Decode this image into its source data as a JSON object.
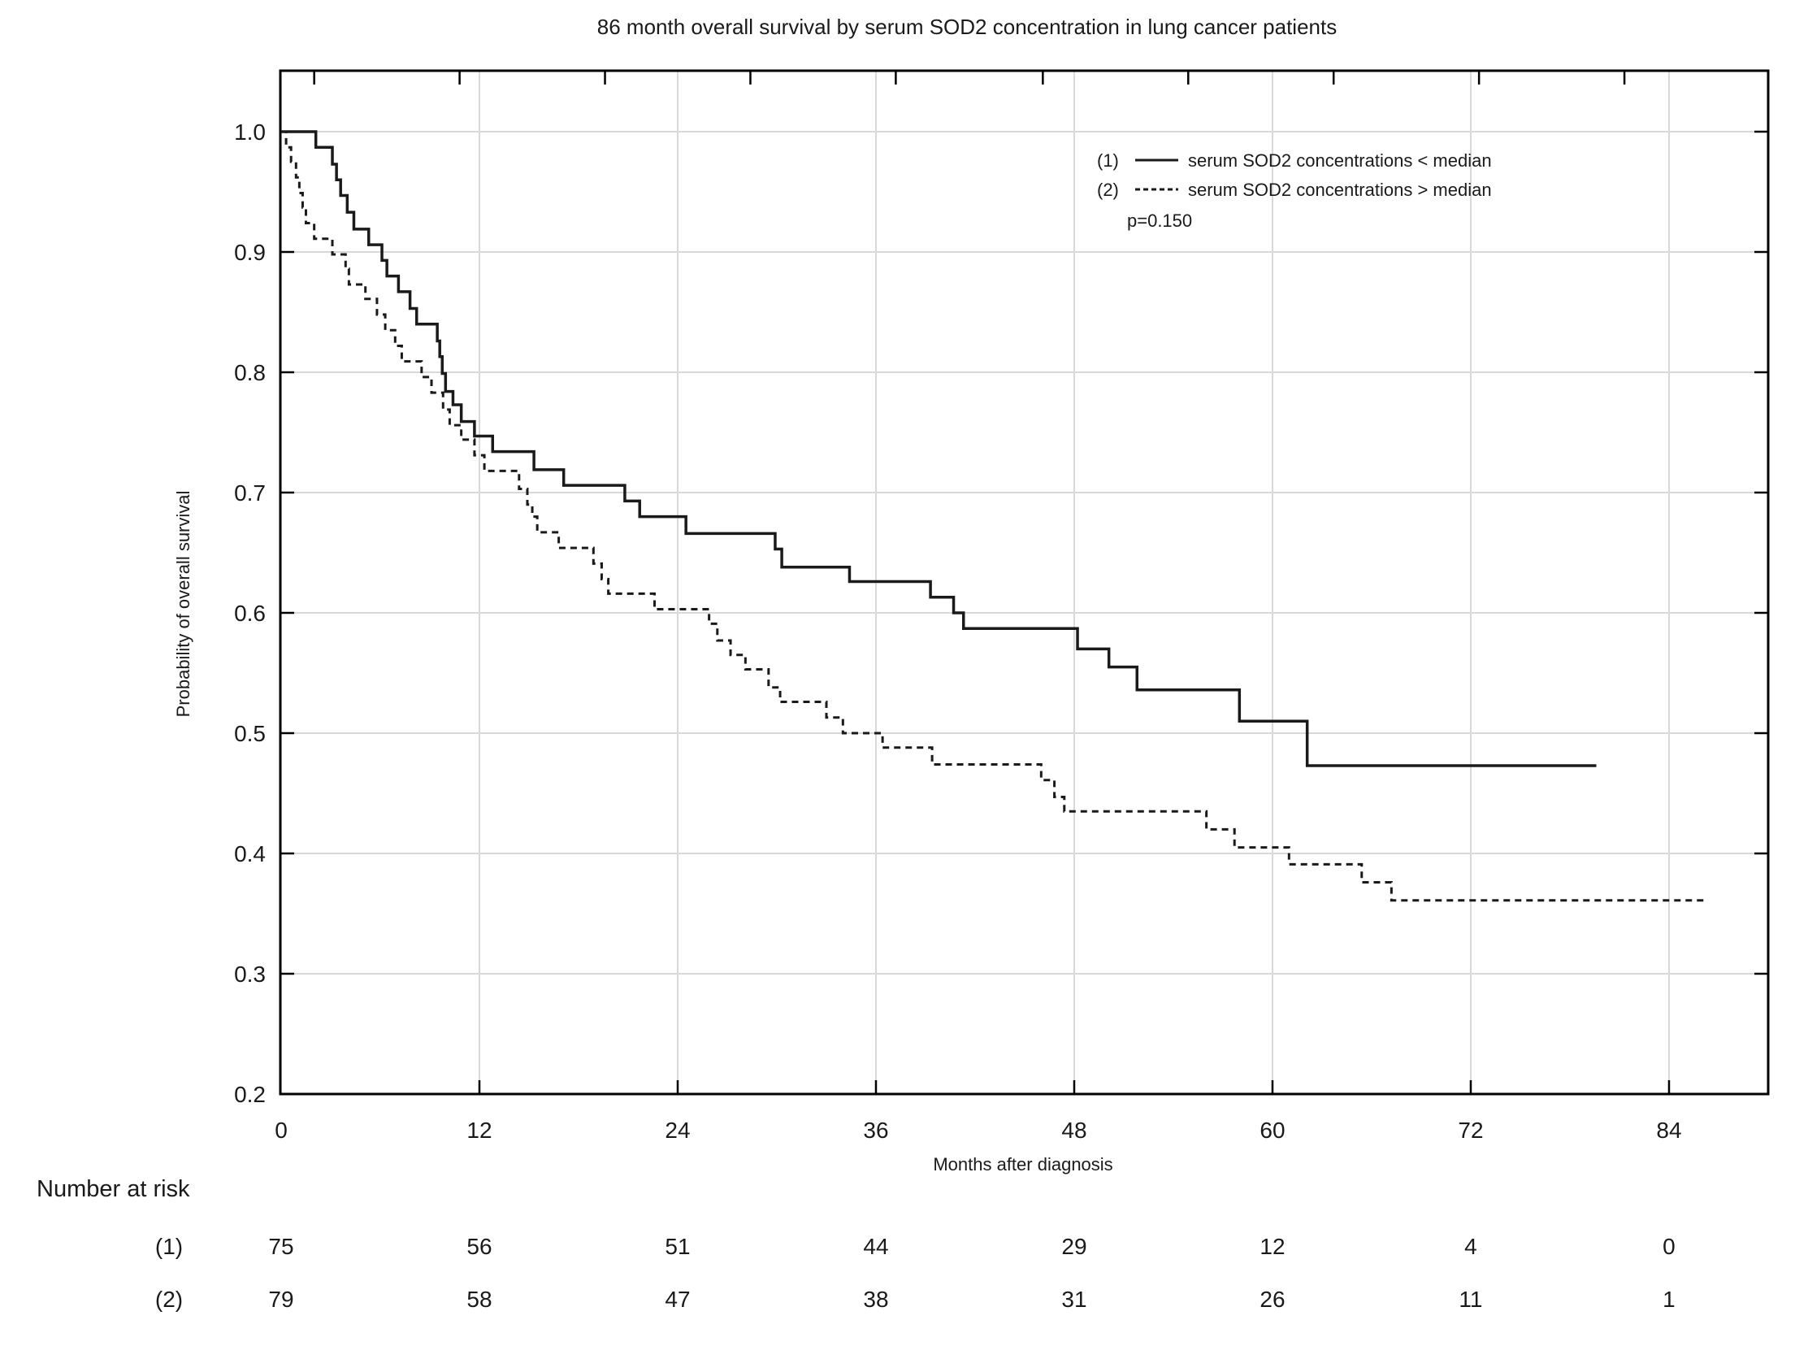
{
  "figure": {
    "background": "#ffffff",
    "ink": "#1a1a1a",
    "grid_color": "#d9d9d9"
  },
  "chart_data": {
    "type": "line",
    "variant": "kaplan_meier_step",
    "title": "86 month overall survival by serum SOD2 concentration in lung cancer patients",
    "xlabel": "Months after diagnosis",
    "ylabel": "Probability of overall survival",
    "xlim": [
      0,
      90
    ],
    "ylim": [
      0.2,
      1.05
    ],
    "xticks": [
      0,
      12,
      24,
      36,
      48,
      60,
      72,
      84
    ],
    "yticks": [
      1.0,
      0.9,
      0.8,
      0.7,
      0.6,
      0.5,
      0.4,
      0.3,
      0.2
    ],
    "ytick_labels": [
      "1.0",
      "0.9",
      "0.8",
      "0.7",
      "0.6",
      "0.5",
      "0.4",
      "0.3",
      "0.2"
    ],
    "grid": true,
    "gridlines_y": [
      1.0,
      0.9,
      0.8,
      0.7,
      0.6,
      0.5,
      0.4,
      0.3
    ],
    "gridlines_x": [
      12,
      24,
      36,
      48,
      60,
      72,
      84
    ],
    "top_tick_months": [
      2.0,
      10.8,
      19.6,
      28.4,
      37.2,
      46.1,
      54.9,
      63.7,
      72.5,
      81.3
    ],
    "right_tick_values": [
      1.0,
      0.9,
      0.8,
      0.7,
      0.6,
      0.5,
      0.4,
      0.3
    ],
    "legend": {
      "position": "top-right-inside",
      "items": [
        {
          "id": "(1)",
          "style": "solid",
          "label": "serum SOD2 concentrations < median"
        },
        {
          "id": "(2)",
          "style": "dashed",
          "label": "serum SOD2 concentrations > median"
        }
      ],
      "annotation": "p=0.150"
    },
    "series": [
      {
        "name": "(1) serum SOD2 concentrations < median",
        "line": "solid",
        "end_month": 79.6,
        "steps": [
          [
            0,
            1.0
          ],
          [
            2.1,
            0.987
          ],
          [
            3.1,
            0.973
          ],
          [
            3.35,
            0.96
          ],
          [
            3.6,
            0.947
          ],
          [
            4.0,
            0.933
          ],
          [
            4.4,
            0.919
          ],
          [
            5.3,
            0.906
          ],
          [
            6.1,
            0.893
          ],
          [
            6.4,
            0.88
          ],
          [
            7.1,
            0.867
          ],
          [
            7.8,
            0.853
          ],
          [
            8.2,
            0.84
          ],
          [
            9.45,
            0.826
          ],
          [
            9.6,
            0.813
          ],
          [
            9.75,
            0.799
          ],
          [
            9.95,
            0.784
          ],
          [
            10.4,
            0.773
          ],
          [
            10.9,
            0.759
          ],
          [
            11.7,
            0.747
          ],
          [
            12.8,
            0.734
          ],
          [
            15.3,
            0.719
          ],
          [
            17.1,
            0.706
          ],
          [
            20.8,
            0.693
          ],
          [
            21.7,
            0.68
          ],
          [
            24.5,
            0.666
          ],
          [
            29.9,
            0.653
          ],
          [
            30.3,
            0.638
          ],
          [
            34.4,
            0.626
          ],
          [
            39.3,
            0.613
          ],
          [
            40.7,
            0.6
          ],
          [
            41.3,
            0.587
          ],
          [
            48.2,
            0.57
          ],
          [
            50.1,
            0.555
          ],
          [
            51.8,
            0.536
          ],
          [
            58.0,
            0.51
          ],
          [
            62.1,
            0.473
          ]
        ]
      },
      {
        "name": "(2) serum SOD2 concentrations > median",
        "line": "dashed",
        "end_month": 86.1,
        "steps": [
          [
            0,
            1.0
          ],
          [
            0.3,
            0.987
          ],
          [
            0.6,
            0.975
          ],
          [
            0.9,
            0.962
          ],
          [
            1.1,
            0.949
          ],
          [
            1.3,
            0.937
          ],
          [
            1.5,
            0.924
          ],
          [
            2.0,
            0.911
          ],
          [
            3.1,
            0.898
          ],
          [
            3.9,
            0.886
          ],
          [
            4.1,
            0.873
          ],
          [
            5.1,
            0.861
          ],
          [
            5.8,
            0.848
          ],
          [
            6.3,
            0.835
          ],
          [
            6.9,
            0.822
          ],
          [
            7.3,
            0.809
          ],
          [
            8.5,
            0.796
          ],
          [
            9.1,
            0.783
          ],
          [
            9.8,
            0.769
          ],
          [
            10.2,
            0.756
          ],
          [
            10.9,
            0.744
          ],
          [
            11.7,
            0.731
          ],
          [
            12.3,
            0.718
          ],
          [
            14.4,
            0.703
          ],
          [
            14.9,
            0.69
          ],
          [
            15.2,
            0.68
          ],
          [
            15.5,
            0.667
          ],
          [
            16.8,
            0.654
          ],
          [
            18.9,
            0.641
          ],
          [
            19.4,
            0.628
          ],
          [
            19.8,
            0.616
          ],
          [
            22.6,
            0.603
          ],
          [
            25.9,
            0.591
          ],
          [
            26.4,
            0.577
          ],
          [
            27.2,
            0.565
          ],
          [
            28.1,
            0.553
          ],
          [
            29.5,
            0.538
          ],
          [
            30.2,
            0.526
          ],
          [
            33.0,
            0.513
          ],
          [
            34.0,
            0.5
          ],
          [
            36.4,
            0.488
          ],
          [
            39.4,
            0.474
          ],
          [
            46.0,
            0.461
          ],
          [
            46.8,
            0.447
          ],
          [
            47.4,
            0.435
          ],
          [
            56.0,
            0.42
          ],
          [
            57.7,
            0.405
          ],
          [
            61.0,
            0.391
          ],
          [
            65.4,
            0.376
          ],
          [
            67.2,
            0.361
          ]
        ]
      }
    ],
    "number_at_risk": {
      "label": "Number at risk",
      "months": [
        0,
        12,
        24,
        36,
        48,
        60,
        72,
        84
      ],
      "rows": [
        {
          "id": "(1)",
          "counts": [
            "75",
            "56",
            "51",
            "44",
            "29",
            "12",
            "4",
            "0"
          ]
        },
        {
          "id": "(2)",
          "counts": [
            "79",
            "58",
            "47",
            "38",
            "31",
            "26",
            "11",
            "1"
          ]
        }
      ]
    }
  }
}
